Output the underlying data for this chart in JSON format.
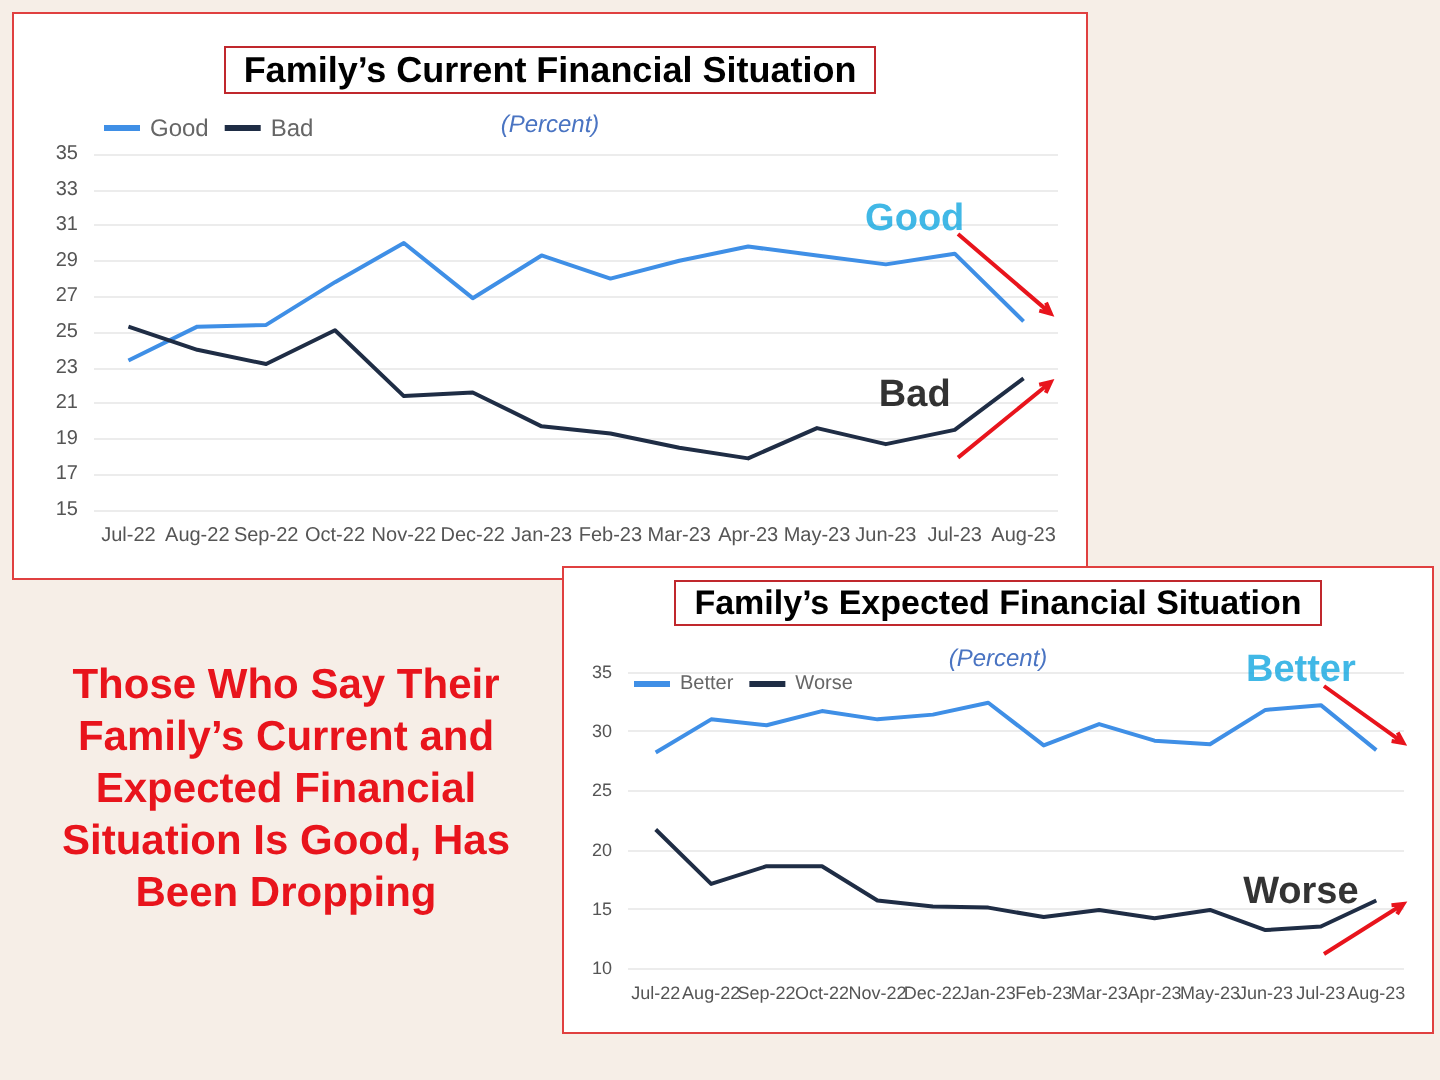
{
  "chart_data": [
    {
      "type": "line",
      "title": "Family’s Current Financial Situation",
      "subtitle": "(Percent)",
      "categories": [
        "Jul-22",
        "Aug-22",
        "Sep-22",
        "Oct-22",
        "Nov-22",
        "Dec-22",
        "Jan-23",
        "Feb-23",
        "Mar-23",
        "Apr-23",
        "May-23",
        "Jun-23",
        "Jul-23",
        "Aug-23"
      ],
      "series": [
        {
          "name": "Good",
          "color": "#3f8fe6",
          "values": [
            23.4,
            25.3,
            25.4,
            27.8,
            30.0,
            26.9,
            29.3,
            28.0,
            29.0,
            29.8,
            29.3,
            28.8,
            29.4,
            25.6
          ]
        },
        {
          "name": "Bad",
          "color": "#1f2d45",
          "values": [
            25.3,
            24.0,
            23.2,
            25.1,
            21.4,
            21.6,
            19.7,
            19.3,
            18.5,
            17.9,
            19.6,
            18.7,
            19.5,
            22.4
          ]
        }
      ],
      "ylim": [
        15,
        35
      ],
      "yticks": [
        15,
        17,
        19,
        21,
        23,
        25,
        27,
        29,
        31,
        33,
        35
      ],
      "grid": "y",
      "legend": "top left",
      "marker": "none",
      "annotations": [
        "Good",
        "Bad"
      ]
    },
    {
      "type": "line",
      "title": "Family’s Expected Financial Situation",
      "subtitle": "(Percent)",
      "categories": [
        "Jul-22",
        "Aug-22",
        "Sep-22",
        "Oct-22",
        "Nov-22",
        "Dec-22",
        "Jan-23",
        "Feb-23",
        "Mar-23",
        "Apr-23",
        "May-23",
        "Jun-23",
        "Jul-23",
        "Aug-23"
      ],
      "series": [
        {
          "name": "Better",
          "color": "#3f8fe6",
          "values": [
            28.2,
            31.0,
            30.5,
            31.7,
            31.0,
            31.4,
            32.4,
            28.8,
            30.6,
            29.2,
            28.9,
            31.8,
            32.2,
            28.4
          ]
        },
        {
          "name": "Worse",
          "color": "#1f2d45",
          "values": [
            21.7,
            17.1,
            18.6,
            18.6,
            15.7,
            15.2,
            15.1,
            14.3,
            14.9,
            14.2,
            14.9,
            13.2,
            13.5,
            15.7
          ]
        }
      ],
      "ylim": [
        10,
        35
      ],
      "yticks": [
        10,
        15,
        20,
        25,
        30,
        35
      ],
      "grid": "y",
      "legend": "top left",
      "marker": "none",
      "annotations": [
        "Better",
        "Worse"
      ]
    },
    {
      "type": "other",
      "title": "Those Who Say Their Family’s Current and Expected Financial Situation Is Good, Has Been Dropping"
    }
  ]
}
